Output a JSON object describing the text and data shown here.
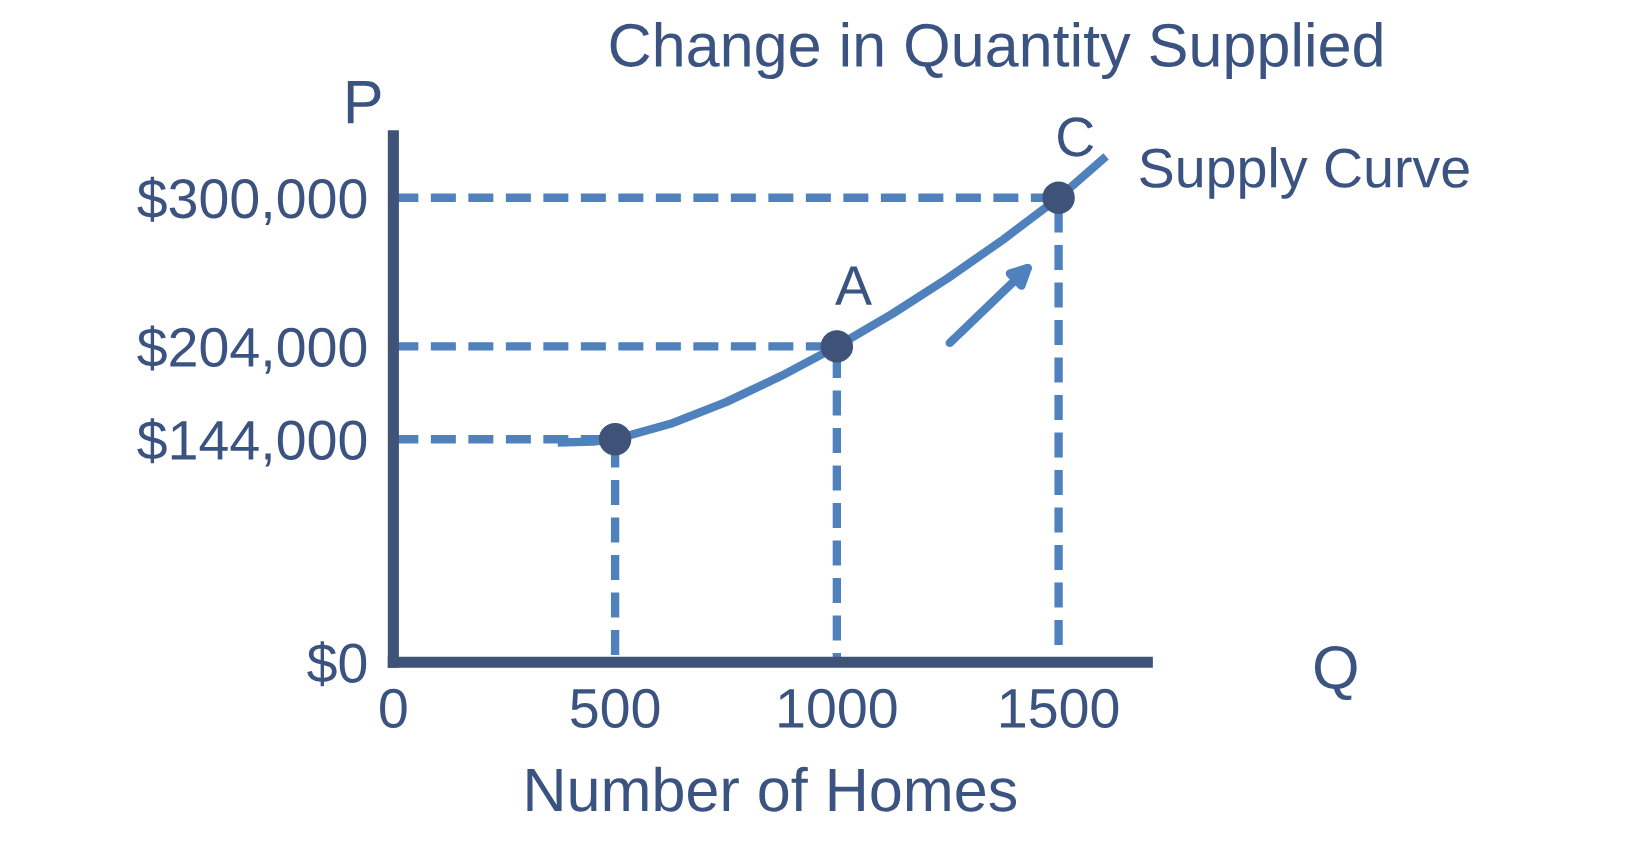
{
  "chart_data": {
    "type": "line",
    "title": "Change in Quantity Supplied",
    "xlabel": "Number of Homes",
    "ylabel": "P",
    "xlim": [
      0,
      1700
    ],
    "ylim": [
      0,
      340000
    ],
    "xticks": [
      0,
      500,
      1000,
      1500
    ],
    "yticks": [
      {
        "value": 0,
        "label": "$0"
      },
      {
        "value": 144000,
        "label": "$144,000"
      },
      {
        "value": 204000,
        "label": "$204,000"
      },
      {
        "value": 300000,
        "label": "$300,000"
      }
    ],
    "grid": false,
    "legend": false,
    "series": [
      {
        "color": "#4f81bd",
        "line_style": "solid",
        "marker": "none",
        "x": [
          380,
          450,
          500,
          625,
          750,
          875,
          1000,
          1125,
          1250,
          1375,
          1500,
          1600
        ],
        "values": [
          142000,
          142500,
          144000,
          154000,
          168000,
          185000,
          204000,
          225000,
          248000,
          273000,
          300000,
          325000
        ]
      },
      {
        "color": "#4f81bd",
        "line_style": "dashed",
        "marker": "none",
        "x": [
          0,
          500,
          500
        ],
        "values": [
          144000,
          144000,
          0
        ]
      },
      {
        "color": "#4f81bd",
        "line_style": "dashed",
        "marker": "none",
        "x": [
          0,
          1000,
          1000
        ],
        "values": [
          204000,
          204000,
          0
        ]
      },
      {
        "color": "#4f81bd",
        "line_style": "dashed",
        "marker": "none",
        "x": [
          0,
          1500,
          1500
        ],
        "values": [
          300000,
          300000,
          0
        ]
      },
      {
        "type": "scatter",
        "color": "#3f5378",
        "marker": "circle",
        "x": [
          500,
          1000,
          1500
        ],
        "values": [
          144000,
          204000,
          300000
        ]
      }
    ],
    "annotations": [
      {
        "text": "A",
        "x": 1000,
        "y": 204000
      },
      {
        "text": "C",
        "x": 1500,
        "y": 300000
      },
      {
        "text": "Supply Curve",
        "x": 1600,
        "y": 325000
      },
      "Q"
    ]
  }
}
